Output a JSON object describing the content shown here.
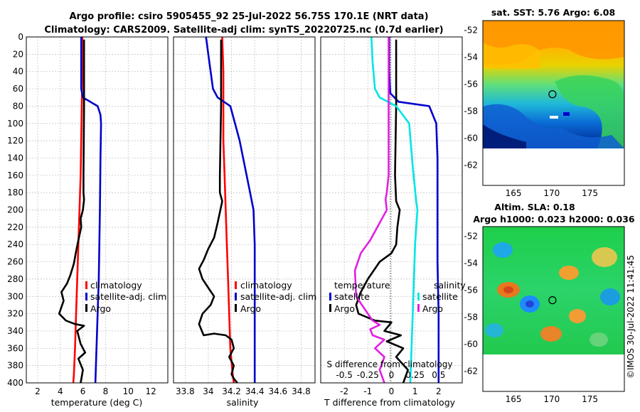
{
  "title_line1": "Argo profile: csiro 5905455_92 25-Jul-2022 56.75S 170.1E (NRT data)",
  "title_line2": "Climatology: CARS2009. Satellite-adj clim: synTS_20220725.nc (0.7d earlier)",
  "credit": "©IMOS 30-Jul-2022 11:41:45",
  "colors": {
    "climatology": "#ff0000",
    "satellite": "#0000cc",
    "argo": "#000000",
    "s_satellite": "#00e5e5",
    "s_argo": "#e020e0"
  },
  "chart_data": [
    {
      "type": "line",
      "id": "temperature",
      "xlabel": "temperature (deg C)",
      "xlim": [
        1,
        13.5
      ],
      "ylim": [
        400,
        0
      ],
      "xticks": [
        2,
        4,
        6,
        8,
        10,
        12
      ],
      "yticks": [
        0,
        20,
        40,
        60,
        80,
        100,
        120,
        140,
        160,
        180,
        200,
        220,
        240,
        260,
        280,
        300,
        320,
        340,
        360,
        380,
        400
      ],
      "legend": [
        "climatology",
        "satellite-adj. clim",
        "Argo"
      ],
      "series": [
        {
          "name": "climatology",
          "color": "#ff0000",
          "x": [
            5.95,
            5.95,
            5.9,
            5.85,
            5.8,
            5.7,
            5.6,
            5.5,
            5.4,
            5.3,
            5.2,
            5.15
          ],
          "y": [
            0,
            40,
            80,
            120,
            160,
            200,
            240,
            280,
            320,
            360,
            390,
            400
          ]
        },
        {
          "name": "satellite-adj. clim",
          "color": "#0000cc",
          "x": [
            5.85,
            5.85,
            5.85,
            6.0,
            7.3,
            7.55,
            7.6,
            7.55,
            7.5,
            7.45,
            7.4,
            7.3,
            7.2,
            7.1
          ],
          "y": [
            0,
            20,
            60,
            70,
            80,
            90,
            100,
            140,
            200,
            240,
            280,
            320,
            360,
            400
          ]
        },
        {
          "name": "Argo",
          "color": "#000000",
          "x": [
            6.1,
            6.1,
            6.05,
            6.05,
            6.1,
            6.0,
            5.8,
            5.85,
            5.6,
            5.4,
            5.2,
            4.9,
            4.6,
            4.1,
            4.3,
            3.9,
            4.5,
            5.3,
            6.1,
            5.5,
            5.8,
            6.2,
            5.6,
            6.0,
            5.8
          ],
          "y": [
            3,
            80,
            160,
            180,
            188,
            200,
            210,
            220,
            235,
            248,
            262,
            275,
            285,
            295,
            305,
            320,
            328,
            332,
            334,
            340,
            355,
            365,
            372,
            385,
            400
          ]
        }
      ]
    },
    {
      "type": "line",
      "id": "salinity",
      "xlabel": "salinity",
      "xlim": [
        33.7,
        34.92
      ],
      "ylim": [
        400,
        0
      ],
      "xticks": [
        33.8,
        34,
        34.2,
        34.4,
        34.6,
        34.8
      ],
      "yticks": [
        0,
        20,
        40,
        60,
        80,
        100,
        120,
        140,
        160,
        180,
        200,
        220,
        240,
        260,
        280,
        300,
        320,
        340,
        360,
        380,
        400
      ],
      "legend": [
        "climatology",
        "satellite-adj. clim",
        "Argo"
      ],
      "series": [
        {
          "name": "climatology",
          "color": "#ff0000",
          "x": [
            34.12,
            34.13,
            34.13,
            34.13,
            34.14,
            34.15,
            34.16,
            34.17,
            34.18,
            34.19,
            34.21,
            34.22
          ],
          "y": [
            0,
            40,
            80,
            120,
            160,
            200,
            240,
            280,
            320,
            360,
            390,
            400
          ]
        },
        {
          "name": "satellite-adj. clim",
          "color": "#0000cc",
          "x": [
            33.98,
            34.0,
            34.02,
            34.04,
            34.08,
            34.19,
            34.23,
            34.27,
            34.3,
            34.33,
            34.36,
            34.39,
            34.4,
            34.4,
            34.4
          ],
          "y": [
            0,
            20,
            40,
            60,
            70,
            80,
            100,
            120,
            140,
            160,
            180,
            200,
            240,
            320,
            400
          ]
        },
        {
          "name": "Argo",
          "color": "#000000",
          "x": [
            34.11,
            34.11,
            34.1,
            34.1,
            34.12,
            34.08,
            34.05,
            34.0,
            33.96,
            33.92,
            33.95,
            34.0,
            34.05,
            34.02,
            33.95,
            33.92,
            33.96,
            34.05,
            34.15,
            34.2,
            34.22,
            34.18,
            34.22,
            34.2,
            34.22,
            34.25
          ],
          "y": [
            3,
            80,
            160,
            180,
            190,
            215,
            232,
            245,
            258,
            268,
            280,
            290,
            300,
            310,
            320,
            332,
            345,
            343,
            345,
            350,
            360,
            370,
            380,
            390,
            395,
            400
          ]
        }
      ]
    },
    {
      "type": "line",
      "id": "difference",
      "xlabel": "T difference from climatology",
      "xlabel_top": "S difference from climatology",
      "xlim": [
        -3,
        3
      ],
      "ylim": [
        400,
        0
      ],
      "xticks": [
        -2,
        -1,
        0,
        1,
        2
      ],
      "xticks_top": [
        -0.5,
        -0.25,
        0,
        0.25,
        0.5
      ],
      "yticks": [
        0,
        20,
        40,
        60,
        80,
        100,
        120,
        140,
        160,
        180,
        200,
        220,
        240,
        260,
        280,
        300,
        320,
        340,
        360,
        380,
        400
      ],
      "legend_temperature_title": "temperature",
      "legend_salinity_title": "salinity",
      "legend_labels": {
        "t_satellite": "satellite",
        "t_argo": "Argo",
        "s_satellite": "satellite",
        "s_argo": "Argo"
      },
      "series": [
        {
          "name": "T satellite",
          "color": "#0000cc",
          "x": [
            -0.1,
            -0.1,
            -0.05,
            0.3,
            1.6,
            1.9,
            1.95,
            1.95,
            1.95,
            2.0,
            2.0,
            2.0
          ],
          "y": [
            0,
            40,
            65,
            75,
            80,
            100,
            140,
            200,
            260,
            320,
            360,
            400
          ]
        },
        {
          "name": "T argo",
          "color": "#000000",
          "x": [
            0.2,
            0.2,
            0.15,
            0.2,
            0.35,
            0.25,
            0.2,
            0.0,
            -0.5,
            -1.0,
            -1.3,
            -1.5,
            -1.4,
            -0.7,
            0.0,
            -0.3,
            0.4,
            -0.2,
            0.5,
            0.2,
            0.7,
            0.5
          ],
          "y": [
            3,
            80,
            160,
            190,
            200,
            220,
            240,
            250,
            260,
            280,
            295,
            310,
            320,
            328,
            330,
            340,
            345,
            352,
            360,
            370,
            385,
            400
          ]
        },
        {
          "name": "S satellite",
          "color": "#00e5e5",
          "x": [
            -0.85,
            -0.8,
            -0.7,
            -0.5,
            0.2,
            0.75,
            0.9,
            1.05,
            1.1,
            1.0,
            0.95,
            0.9,
            0.85,
            0.8
          ],
          "y": [
            0,
            30,
            60,
            70,
            80,
            100,
            150,
            190,
            200,
            240,
            280,
            320,
            360,
            400
          ]
        },
        {
          "name": "S argo",
          "color": "#e020e0",
          "x": [
            -0.12,
            -0.12,
            -0.12,
            -0.2,
            -0.25,
            -0.2,
            -0.5,
            -0.9,
            -1.3,
            -1.55,
            -1.5,
            -1.0,
            -0.8,
            -0.5,
            -0.9,
            -0.8,
            -0.3,
            -0.7,
            -0.3,
            -0.5,
            -0.3
          ],
          "y": [
            0,
            80,
            160,
            180,
            188,
            200,
            215,
            235,
            250,
            270,
            300,
            320,
            328,
            333,
            338,
            345,
            350,
            360,
            370,
            385,
            400
          ]
        }
      ]
    },
    {
      "type": "heatmap",
      "id": "sst_map",
      "title": "sat. SST: 5.76 Argo: 6.08",
      "xlim": [
        161,
        179.5
      ],
      "ylim": [
        -63.5,
        -51.3
      ],
      "xticks": [
        165,
        170,
        175
      ],
      "yticks": [
        -52,
        -54,
        -56,
        -58,
        -60,
        -62
      ],
      "data_bottom_lat": -60,
      "float_position": {
        "lon": 170.1,
        "lat": -56.75
      }
    },
    {
      "type": "heatmap",
      "id": "sla_map",
      "title_line1": "Altim. SLA: 0.18",
      "title_line2": "Argo h1000: 0.023 h2000: 0.036",
      "xlim": [
        161,
        179.5
      ],
      "ylim": [
        -63.5,
        -51.3
      ],
      "xticks": [
        165,
        170,
        175
      ],
      "yticks": [
        -52,
        -54,
        -56,
        -58,
        -60,
        -62
      ],
      "data_bottom_lat": -60,
      "float_position": {
        "lon": 170.1,
        "lat": -56.75
      }
    }
  ]
}
